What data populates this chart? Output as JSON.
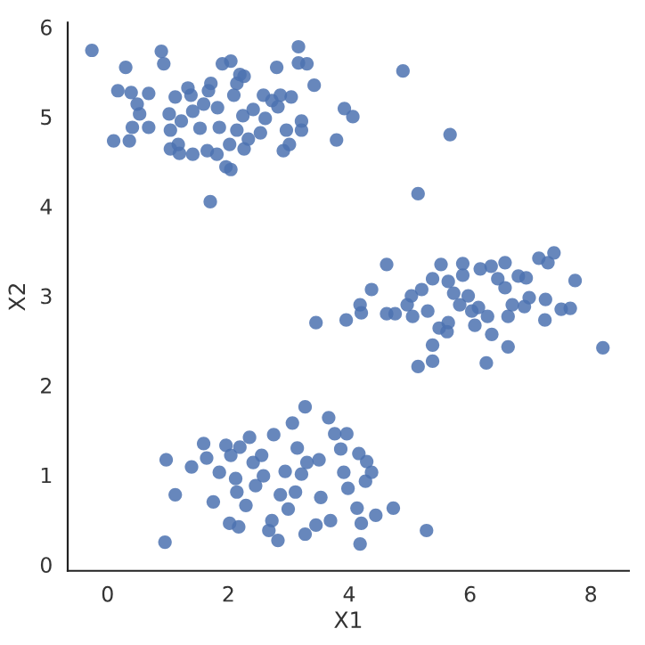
{
  "chart_data": {
    "type": "scatter",
    "xlabel": "X1",
    "ylabel": "X2",
    "x": [
      -0.26,
      0.89,
      0.93,
      0.3,
      0.17,
      0.39,
      0.68,
      0.49,
      0.53,
      0.41,
      0.68,
      0.1,
      0.36,
      1.02,
      1.04,
      1.12,
      1.17,
      1.04,
      1.19,
      1.41,
      1.22,
      1.33,
      1.38,
      1.41,
      1.53,
      1.59,
      1.71,
      1.67,
      1.65,
      1.81,
      1.7,
      1.85,
      1.82,
      1.9,
      2.04,
      1.96,
      2.04,
      2.02,
      2.09,
      2.19,
      2.26,
      2.14,
      2.24,
      2.14,
      2.26,
      2.33,
      2.41,
      2.53,
      2.58,
      2.61,
      2.72,
      2.8,
      2.86,
      2.91,
      3.01,
      3.04,
      2.96,
      3.16,
      3.16,
      3.3,
      3.21,
      3.21,
      3.42,
      2.82,
      3.92,
      4.06,
      3.79,
      4.89,
      5.67,
      5.14,
      3.45,
      3.95,
      4.18,
      4.2,
      4.37,
      4.62,
      4.62,
      4.76,
      4.96,
      5.03,
      5.05,
      5.14,
      5.2,
      5.3,
      5.38,
      5.38,
      5.38,
      5.49,
      5.52,
      5.62,
      5.64,
      5.64,
      5.73,
      5.83,
      5.88,
      5.88,
      5.97,
      6.03,
      6.08,
      6.14,
      6.17,
      6.27,
      6.29,
      6.35,
      6.36,
      6.46,
      6.58,
      6.58,
      6.63,
      6.63,
      6.7,
      6.8,
      6.9,
      6.93,
      6.98,
      7.14,
      7.24,
      7.25,
      7.29,
      7.39,
      7.51,
      7.66,
      7.74,
      8.2,
      0.97,
      0.95,
      1.12,
      1.39,
      1.59,
      1.64,
      1.75,
      1.85,
      1.96,
      2.02,
      2.04,
      2.12,
      2.14,
      2.17,
      2.19,
      2.29,
      2.35,
      2.41,
      2.45,
      2.55,
      2.58,
      2.67,
      2.72,
      2.75,
      2.82,
      2.86,
      2.94,
      2.99,
      3.06,
      3.11,
      3.14,
      3.21,
      3.27,
      3.27,
      3.3,
      3.45,
      3.5,
      3.53,
      3.66,
      3.69,
      3.76,
      3.86,
      3.91,
      3.96,
      3.98,
      4.13,
      4.16,
      4.18,
      4.2,
      4.27,
      4.37,
      4.44,
      4.73,
      5.28,
      4.29
    ],
    "values": [
      5.74,
      5.73,
      5.59,
      5.55,
      5.29,
      5.27,
      5.26,
      5.14,
      5.03,
      4.88,
      4.88,
      4.73,
      4.73,
      5.03,
      4.85,
      5.22,
      4.69,
      4.64,
      4.59,
      4.58,
      4.95,
      5.32,
      5.24,
      5.06,
      4.87,
      5.14,
      5.37,
      5.29,
      4.62,
      4.58,
      4.05,
      4.88,
      5.1,
      5.59,
      5.62,
      4.44,
      4.41,
      4.69,
      5.24,
      5.47,
      5.45,
      5.37,
      5.01,
      4.85,
      4.64,
      4.75,
      5.08,
      4.82,
      5.24,
      4.98,
      5.18,
      5.55,
      5.24,
      4.62,
      4.69,
      5.22,
      4.85,
      5.78,
      5.6,
      5.59,
      4.95,
      4.85,
      5.35,
      5.11,
      5.09,
      5.0,
      4.74,
      5.51,
      4.8,
      4.14,
      2.7,
      2.73,
      2.9,
      2.81,
      3.07,
      3.35,
      2.8,
      2.8,
      2.9,
      3.0,
      2.77,
      2.21,
      3.07,
      2.83,
      3.19,
      2.45,
      2.27,
      2.64,
      3.35,
      2.6,
      2.7,
      3.16,
      3.03,
      2.9,
      3.36,
      3.23,
      3.0,
      2.83,
      2.67,
      2.87,
      3.3,
      2.25,
      2.77,
      3.33,
      2.57,
      3.19,
      3.37,
      3.09,
      2.43,
      2.77,
      2.9,
      3.22,
      2.88,
      3.2,
      2.98,
      3.42,
      2.73,
      2.96,
      3.37,
      3.48,
      2.85,
      2.86,
      3.17,
      2.42,
      1.17,
      0.25,
      0.78,
      1.09,
      1.35,
      1.19,
      0.7,
      1.03,
      1.33,
      0.46,
      1.22,
      0.96,
      0.81,
      0.42,
      1.31,
      0.66,
      1.42,
      1.14,
      0.88,
      1.22,
      0.99,
      0.38,
      0.49,
      1.45,
      0.27,
      0.78,
      1.04,
      0.62,
      1.58,
      0.81,
      1.3,
      1.01,
      1.76,
      0.34,
      1.14,
      0.44,
      1.17,
      0.75,
      1.64,
      0.49,
      1.46,
      1.29,
      1.03,
      1.46,
      0.85,
      0.63,
      1.24,
      0.23,
      0.46,
      0.93,
      1.03,
      0.55,
      0.63,
      0.38,
      1.15
    ],
    "color": "#4c72b0",
    "marker": "circle",
    "xlim": [
      -0.66,
      8.63
    ],
    "ylim": [
      -0.07,
      6.05
    ],
    "xticks": [
      0,
      2,
      4,
      6,
      8
    ],
    "yticks": [
      0,
      1,
      2,
      3,
      4,
      5,
      6
    ],
    "grid": false,
    "legend": false
  }
}
